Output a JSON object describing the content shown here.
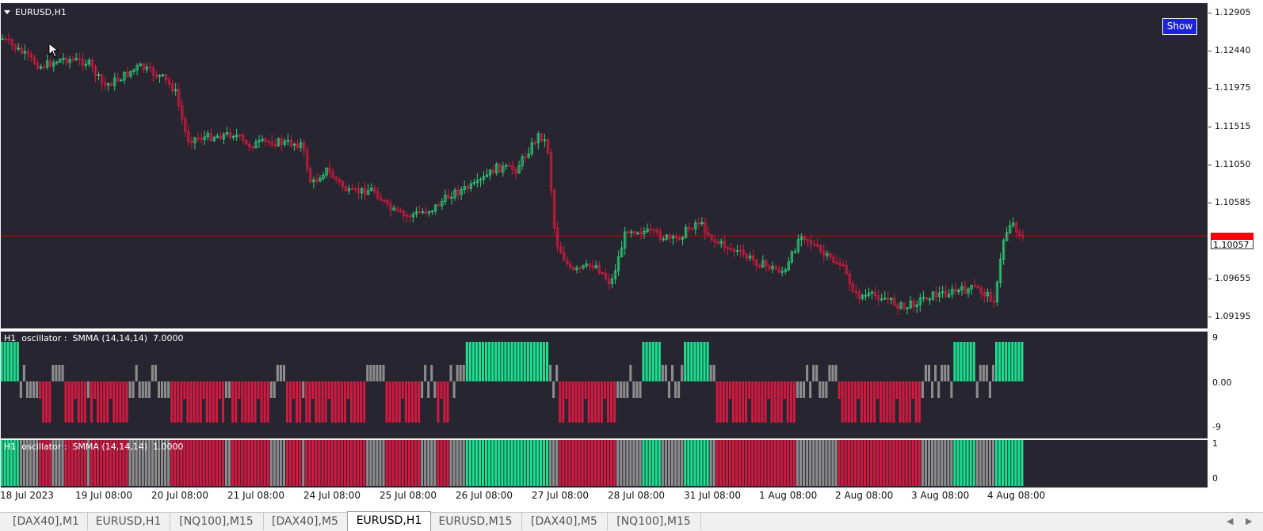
{
  "main_chart": {
    "title": "EURUSD,H1",
    "show_button": "Show",
    "current_price": "1.10057",
    "price_labels": [
      "1.12905",
      "1.12440",
      "1.11975",
      "1.11515",
      "1.11050",
      "1.10585",
      "1.09655",
      "1.09195"
    ],
    "colors": {
      "bull": "#2ecf79",
      "bear": "#d9193f",
      "background": "#262530",
      "hline": "#c80000",
      "last_price_bg": "#ff0000"
    }
  },
  "osc1": {
    "title": "H1  oscillator :  SMMA (14,14,14)  7.0000",
    "scale_labels": [
      "9",
      "0.00",
      "-9"
    ]
  },
  "osc2": {
    "title": "H1  oscillator :  SMMA (14,14,14)  1.0000",
    "scale_labels": [
      "1",
      "0"
    ]
  },
  "time_axis": {
    "labels": [
      "18 Jul 2023",
      "19 Jul 08:00",
      "20 Jul 08:00",
      "21 Jul 08:00",
      "24 Jul 08:00",
      "25 Jul 08:00",
      "26 Jul 08:00",
      "27 Jul 08:00",
      "28 Jul 08:00",
      "31 Jul 08:00",
      "1 Aug 08:00",
      "2 Aug 08:00",
      "3 Aug 08:00",
      "4 Aug 08:00"
    ]
  },
  "tabs": [
    {
      "label": "[DAX40],M1",
      "active": false
    },
    {
      "label": "EURUSD,H1",
      "active": false
    },
    {
      "label": "[NQ100],M15",
      "active": false
    },
    {
      "label": "[DAX40],M5",
      "active": false
    },
    {
      "label": "EURUSD,H1",
      "active": true
    },
    {
      "label": "EURUSD,M15",
      "active": false
    },
    {
      "label": "[DAX40],M5",
      "active": false
    },
    {
      "label": "[NQ100],M15",
      "active": false
    }
  ],
  "osc_colors": {
    "up": "#19e08f",
    "down": "#d21940",
    "neutral": "#8c8c8c"
  }
}
